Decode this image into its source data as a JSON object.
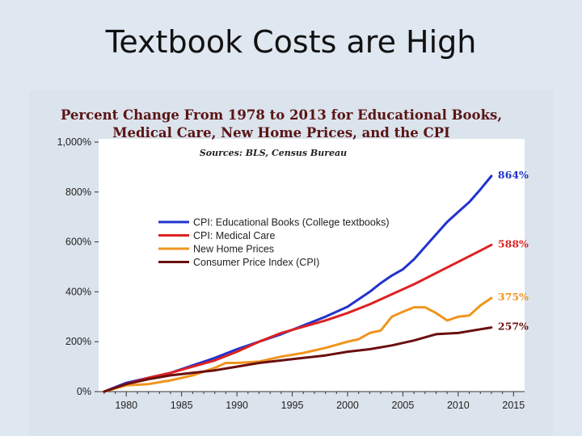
{
  "slide": {
    "title": "Textbook Costs are High"
  },
  "chart_data": {
    "type": "line",
    "title": "Percent Change From 1978 to 2013 for Educational Books, Medical Care, New Home Prices, and the CPI",
    "title_lines": [
      "Percent Change From 1978 to 2013 for Educational Books,",
      "Medical Care, New Home Prices, and the CPI"
    ],
    "subtitle": "Sources: BLS, Census Bureau",
    "xlabel": "",
    "ylabel": "",
    "xlim": [
      1977.5,
      2016
    ],
    "ylim": [
      0,
      1000
    ],
    "x_ticks": [
      1980,
      1985,
      1990,
      1995,
      2000,
      2005,
      2010,
      2015
    ],
    "y_ticks": [
      0,
      200,
      400,
      600,
      800,
      1000
    ],
    "y_tick_labels": [
      "0%",
      "200%",
      "400%",
      "600%",
      "800%",
      "1,000%"
    ],
    "legend_position": "center-left",
    "series": [
      {
        "name": "CPI: Educational Books  (College textbooks)",
        "color": "#2233cc",
        "end_label": "864%",
        "points": [
          [
            1978,
            0
          ],
          [
            1980,
            35
          ],
          [
            1982,
            55
          ],
          [
            1984,
            75
          ],
          [
            1986,
            105
          ],
          [
            1988,
            135
          ],
          [
            1990,
            170
          ],
          [
            1992,
            200
          ],
          [
            1994,
            230
          ],
          [
            1996,
            265
          ],
          [
            1998,
            300
          ],
          [
            2000,
            340
          ],
          [
            2002,
            400
          ],
          [
            2003,
            435
          ],
          [
            2004,
            465
          ],
          [
            2005,
            490
          ],
          [
            2006,
            530
          ],
          [
            2007,
            580
          ],
          [
            2008,
            630
          ],
          [
            2009,
            680
          ],
          [
            2010,
            720
          ],
          [
            2011,
            760
          ],
          [
            2012,
            810
          ],
          [
            2013,
            864
          ]
        ]
      },
      {
        "name": "CPI: Medical Care",
        "color": "#dd2222",
        "end_label": "588%",
        "points": [
          [
            1978,
            0
          ],
          [
            1980,
            30
          ],
          [
            1982,
            55
          ],
          [
            1984,
            75
          ],
          [
            1986,
            100
          ],
          [
            1988,
            125
          ],
          [
            1990,
            160
          ],
          [
            1992,
            200
          ],
          [
            1994,
            235
          ],
          [
            1996,
            260
          ],
          [
            1998,
            285
          ],
          [
            2000,
            315
          ],
          [
            2002,
            350
          ],
          [
            2004,
            390
          ],
          [
            2006,
            430
          ],
          [
            2008,
            475
          ],
          [
            2010,
            520
          ],
          [
            2012,
            565
          ],
          [
            2013,
            588
          ]
        ]
      },
      {
        "name": "New Home Prices",
        "color": "#f0951e",
        "end_label": "375%",
        "points": [
          [
            1978,
            0
          ],
          [
            1980,
            25
          ],
          [
            1982,
            30
          ],
          [
            1984,
            45
          ],
          [
            1986,
            65
          ],
          [
            1988,
            95
          ],
          [
            1989,
            115
          ],
          [
            1990,
            115
          ],
          [
            1992,
            120
          ],
          [
            1994,
            140
          ],
          [
            1996,
            155
          ],
          [
            1998,
            175
          ],
          [
            2000,
            200
          ],
          [
            2001,
            210
          ],
          [
            2002,
            235
          ],
          [
            2003,
            245
          ],
          [
            2004,
            300
          ],
          [
            2005,
            320
          ],
          [
            2006,
            338
          ],
          [
            2007,
            338
          ],
          [
            2008,
            315
          ],
          [
            2009,
            285
          ],
          [
            2010,
            300
          ],
          [
            2011,
            305
          ],
          [
            2012,
            345
          ],
          [
            2013,
            375
          ]
        ]
      },
      {
        "name": "Consumer Price Index (CPI)",
        "color": "#6b0f0f",
        "end_label": "257%",
        "points": [
          [
            1978,
            0
          ],
          [
            1980,
            30
          ],
          [
            1982,
            50
          ],
          [
            1984,
            65
          ],
          [
            1986,
            75
          ],
          [
            1988,
            85
          ],
          [
            1990,
            100
          ],
          [
            1992,
            115
          ],
          [
            1994,
            125
          ],
          [
            1996,
            135
          ],
          [
            1998,
            145
          ],
          [
            2000,
            160
          ],
          [
            2002,
            170
          ],
          [
            2004,
            185
          ],
          [
            2006,
            205
          ],
          [
            2008,
            230
          ],
          [
            2010,
            235
          ],
          [
            2012,
            250
          ],
          [
            2013,
            257
          ]
        ]
      }
    ]
  }
}
